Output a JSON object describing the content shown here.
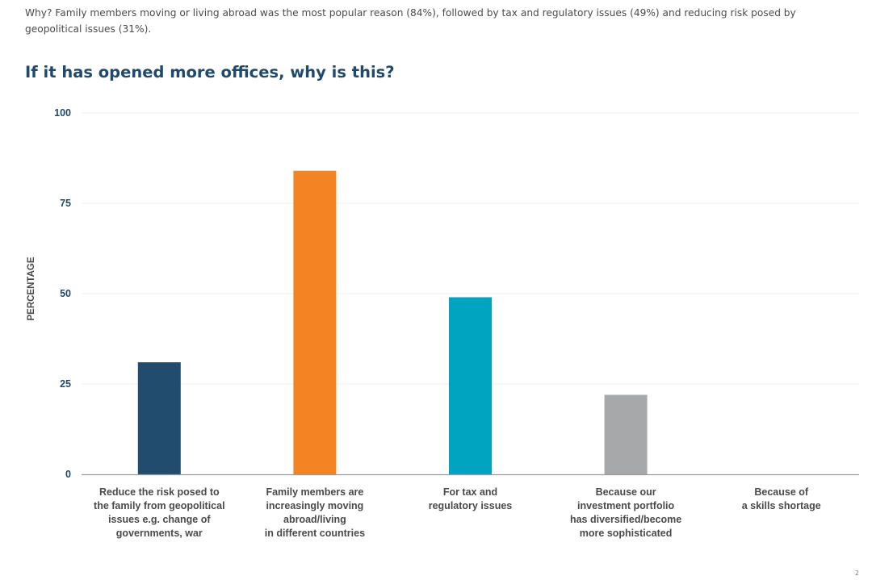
{
  "intro_text": "Why? Family members moving or living abroad was the most popular reason (84%), followed by tax and regulatory issues (49%) and reducing risk posed by geopolitical issues (31%).",
  "heading": "If it has opened more offices, why is this?",
  "page_number": "2",
  "chart_data": {
    "type": "bar",
    "title": "If it has opened more offices, why is this?",
    "xlabel": "",
    "ylabel": "PERCENTAGE",
    "ylim": [
      0,
      100
    ],
    "yticks": [
      0,
      25,
      50,
      75,
      100
    ],
    "grid": true,
    "categories": [
      [
        "Reduce the risk posed to",
        "the family from geopolitical",
        "issues e.g. change of",
        "governments, war"
      ],
      [
        "Family members are",
        "increasingly moving",
        "abroad/living",
        "in different countries"
      ],
      [
        "For tax and",
        "regulatory issues"
      ],
      [
        "Because our",
        "investment portfolio",
        "has diversified/become",
        "more sophisticated"
      ],
      [
        "Because of",
        "a skills shortage"
      ]
    ],
    "values": [
      31,
      84,
      49,
      22,
      0
    ],
    "colors": [
      "#214c6e",
      "#f48422",
      "#00a3c0",
      "#a7a8aa",
      "#a7a8aa"
    ]
  }
}
